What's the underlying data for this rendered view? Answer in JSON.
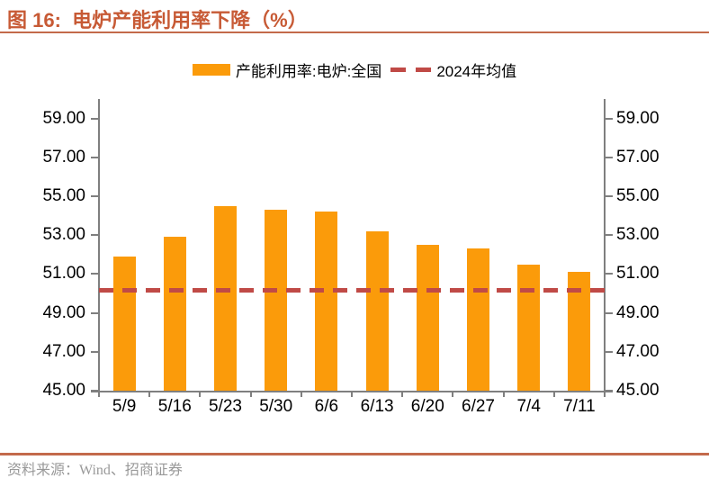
{
  "header": {
    "figure_label": "图 16:",
    "title": "图 16:  电炉产能利用率下降（%）"
  },
  "legend": {
    "bar_label": "产能利用率:电炉:全国",
    "line_label": "2024年均值"
  },
  "footer": {
    "source": "资料来源：Wind、招商证券"
  },
  "colors": {
    "bar": "#FB9B0A",
    "mean_line": "#C04A46",
    "accent_rule": "#C36A4B",
    "title_text": "#C75A35",
    "axis": "#7F7F7F",
    "tick_label": "#000000",
    "source_text": "#999999"
  },
  "chart_data": {
    "type": "bar",
    "title": "电炉产能利用率下降（%）",
    "categories": [
      "5/9",
      "5/16",
      "5/23",
      "5/30",
      "6/6",
      "6/13",
      "6/20",
      "6/27",
      "7/4",
      "7/11"
    ],
    "series": [
      {
        "name": "产能利用率:电炉:全国",
        "type": "bar",
        "color": "#FB9B0A",
        "values": [
          51.9,
          52.9,
          54.5,
          54.3,
          54.2,
          53.2,
          52.5,
          52.3,
          51.5,
          51.1
        ]
      },
      {
        "name": "2024年均值",
        "type": "dashed_horizontal_line",
        "color": "#C04A46",
        "value": 50.2
      }
    ],
    "xlabel": "",
    "ylabel": "",
    "ylim": [
      45,
      60
    ],
    "yticks": [
      59,
      57,
      55,
      53,
      51,
      49,
      47,
      45
    ],
    "ytick_labels": [
      "59.00",
      "57.00",
      "55.00",
      "53.00",
      "51.00",
      "49.00",
      "47.00",
      "45.00"
    ],
    "dual_axis": "mirrored left and right",
    "grid": false,
    "legend_position": "top-center"
  }
}
